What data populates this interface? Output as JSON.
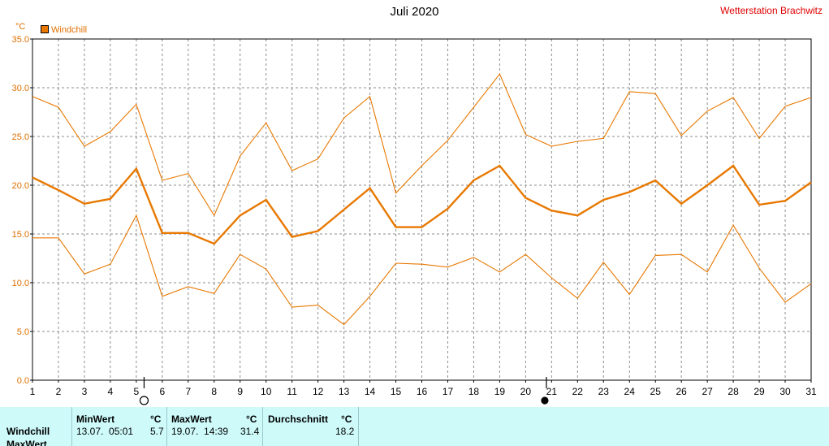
{
  "header": {
    "title": "Juli 2020",
    "station": "Wetterstation Brachwitz",
    "unit": "°C",
    "legend_label": "Windchill"
  },
  "chart_data": {
    "type": "line",
    "title": "Juli 2020",
    "ylabel": "°C",
    "ylim": [
      0,
      35
    ],
    "yticks": [
      "0.0",
      "5.0",
      "10.0",
      "15.0",
      "20.0",
      "25.0",
      "30.0",
      "35.0"
    ],
    "x": [
      1,
      2,
      3,
      4,
      5,
      6,
      7,
      8,
      9,
      10,
      11,
      12,
      13,
      14,
      15,
      16,
      17,
      18,
      19,
      20,
      21,
      22,
      23,
      24,
      25,
      26,
      27,
      28,
      29,
      30,
      31
    ],
    "grid": true,
    "legend_position": "top-left",
    "series": [
      {
        "name": "Windchill",
        "role": "avg",
        "color": "#e87800",
        "values": [
          20.8,
          19.5,
          18.1,
          18.6,
          21.7,
          15.1,
          15.1,
          14.0,
          16.9,
          18.5,
          14.7,
          15.3,
          17.5,
          19.7,
          15.7,
          15.7,
          17.6,
          20.5,
          22.0,
          18.7,
          17.4,
          16.9,
          18.5,
          19.3,
          20.5,
          18.1,
          20.0,
          22.0,
          18.0,
          18.4,
          20.3
        ]
      },
      {
        "role": "max",
        "color": "#e87800",
        "values": [
          29.1,
          28.0,
          24.0,
          25.5,
          28.3,
          20.5,
          21.2,
          16.9,
          23.0,
          26.4,
          21.5,
          22.7,
          26.9,
          29.1,
          19.2,
          22.0,
          24.6,
          28.0,
          31.4,
          25.2,
          24.0,
          24.5,
          24.8,
          29.6,
          29.4,
          25.1,
          27.6,
          29.0,
          24.8,
          28.1,
          29.0
        ]
      },
      {
        "role": "min",
        "color": "#e87800",
        "values": [
          14.6,
          14.6,
          10.9,
          11.9,
          16.9,
          8.6,
          9.6,
          8.9,
          12.9,
          11.4,
          7.5,
          7.7,
          5.7,
          8.6,
          12.0,
          11.9,
          11.6,
          12.6,
          11.1,
          12.9,
          10.5,
          8.4,
          12.1,
          8.8,
          12.8,
          12.9,
          11.1,
          15.9,
          11.5,
          8.0,
          9.9
        ]
      }
    ],
    "markers": [
      {
        "day": 5.3,
        "symbol": "full-moon-circle-icon"
      },
      {
        "day": 20.8,
        "symbol": "new-moon-circle-icon"
      }
    ]
  },
  "stats": {
    "row_label": "Windchill",
    "row_label_2": "MaxWert",
    "min": {
      "header": "MinWert",
      "unit": "°C",
      "datetime": "13.07.  05:01",
      "value": "5.7"
    },
    "max": {
      "header": "MaxWert",
      "unit": "°C",
      "datetime": "19.07.  14:39",
      "value": "31.4"
    },
    "avg": {
      "header": "Durchschnitt",
      "unit": "°C",
      "value": "18.2"
    }
  }
}
